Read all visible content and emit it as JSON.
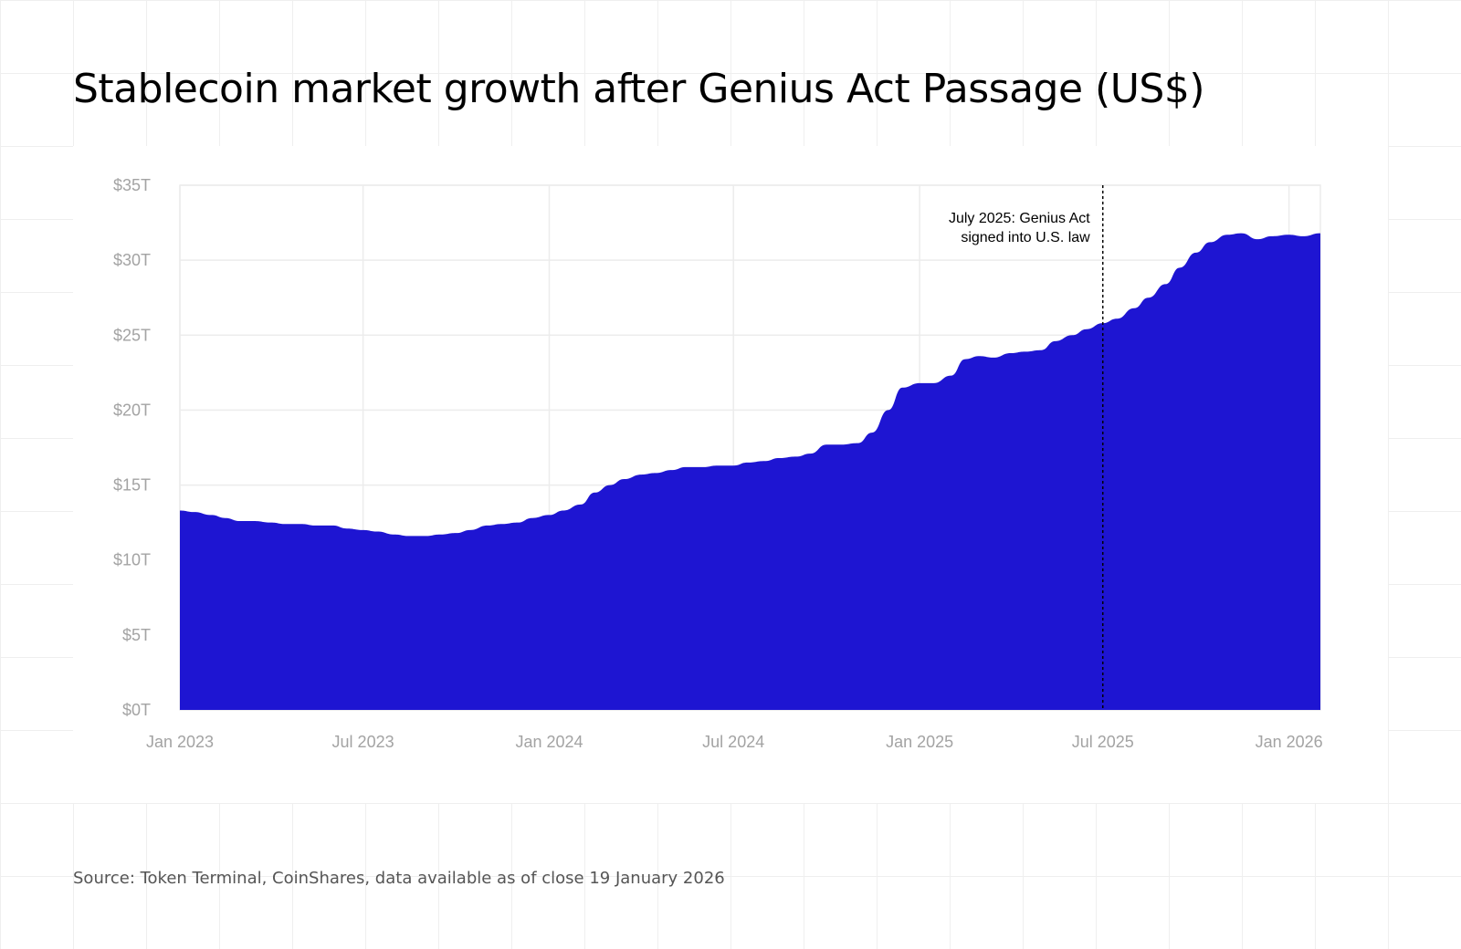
{
  "title": "Stablecoin market growth after Genius Act Passage (US$)",
  "source": "Source: Token Terminal, CoinShares, data available as of close 19 January 2026",
  "chart_data": {
    "type": "area",
    "title": "Stablecoin market growth after Genius Act Passage (US$)",
    "xlabel": "",
    "ylabel": "",
    "x_range": [
      "2023-01-01",
      "2026-02-01"
    ],
    "ylim": [
      0,
      35
    ],
    "y_unit": "trillion US$",
    "y_ticks": [
      0,
      5,
      10,
      15,
      20,
      25,
      30,
      35
    ],
    "y_tick_labels": [
      "$0T",
      "$5T",
      "$10T",
      "$15T",
      "$20T",
      "$25T",
      "$30T",
      "$35T"
    ],
    "x_ticks": [
      "2023-01-01",
      "2023-07-01",
      "2024-01-01",
      "2024-07-01",
      "2025-01-01",
      "2025-07-01",
      "2026-01-01"
    ],
    "x_tick_labels": [
      "Jan 2023",
      "Jul 2023",
      "Jan 2024",
      "Jul 2024",
      "Jan 2025",
      "Jul 2025",
      "Jan 2026"
    ],
    "grid": true,
    "fill_color": "#1e15d2",
    "series": [
      {
        "x": [
          "2023-01-01",
          "2023-01-15",
          "2023-02-01",
          "2023-02-15",
          "2023-03-01",
          "2023-03-15",
          "2023-04-01",
          "2023-04-15",
          "2023-05-01",
          "2023-05-15",
          "2023-06-01",
          "2023-06-15",
          "2023-07-01",
          "2023-07-15",
          "2023-08-01",
          "2023-08-15",
          "2023-09-01",
          "2023-09-15",
          "2023-10-01",
          "2023-10-15",
          "2023-11-01",
          "2023-11-15",
          "2023-12-01",
          "2023-12-15",
          "2024-01-01",
          "2024-01-15",
          "2024-02-01",
          "2024-02-15",
          "2024-03-01",
          "2024-03-15",
          "2024-04-01",
          "2024-04-15",
          "2024-05-01",
          "2024-05-15",
          "2024-06-01",
          "2024-06-15",
          "2024-07-01",
          "2024-07-15",
          "2024-08-01",
          "2024-08-15",
          "2024-09-01",
          "2024-09-15",
          "2024-10-01",
          "2024-10-15",
          "2024-11-01",
          "2024-11-15",
          "2024-12-01",
          "2024-12-15",
          "2025-01-01",
          "2025-01-15",
          "2025-02-01",
          "2025-02-15",
          "2025-03-01",
          "2025-03-15",
          "2025-04-01",
          "2025-04-15",
          "2025-05-01",
          "2025-05-15",
          "2025-06-01",
          "2025-06-15",
          "2025-07-01",
          "2025-07-15",
          "2025-08-01",
          "2025-08-15",
          "2025-09-01",
          "2025-09-15",
          "2025-10-01",
          "2025-10-15",
          "2025-11-01",
          "2025-11-15",
          "2025-12-01",
          "2025-12-15",
          "2026-01-01",
          "2026-01-15",
          "2026-02-01"
        ],
        "y": [
          13.3,
          13.2,
          13.0,
          12.8,
          12.6,
          12.6,
          12.5,
          12.4,
          12.4,
          12.3,
          12.3,
          12.1,
          12.0,
          11.9,
          11.7,
          11.6,
          11.6,
          11.7,
          11.8,
          12.0,
          12.3,
          12.4,
          12.5,
          12.8,
          13.0,
          13.3,
          13.7,
          14.5,
          15.0,
          15.4,
          15.7,
          15.8,
          16.0,
          16.2,
          16.2,
          16.3,
          16.3,
          16.5,
          16.6,
          16.8,
          16.9,
          17.1,
          17.7,
          17.7,
          17.8,
          18.5,
          20.0,
          21.5,
          21.8,
          21.8,
          22.3,
          23.4,
          23.6,
          23.5,
          23.8,
          23.9,
          24.0,
          24.6,
          25.0,
          25.4,
          25.8,
          26.1,
          26.8,
          27.5,
          28.4,
          29.5,
          30.5,
          31.2,
          31.7,
          31.8,
          31.4,
          31.6,
          31.7,
          31.6,
          31.8
        ]
      }
    ],
    "annotation": {
      "x": "2025-07-01",
      "lines": [
        "July 2025: Genius Act",
        "signed into U.S. law"
      ],
      "line_style": "dashed"
    }
  }
}
